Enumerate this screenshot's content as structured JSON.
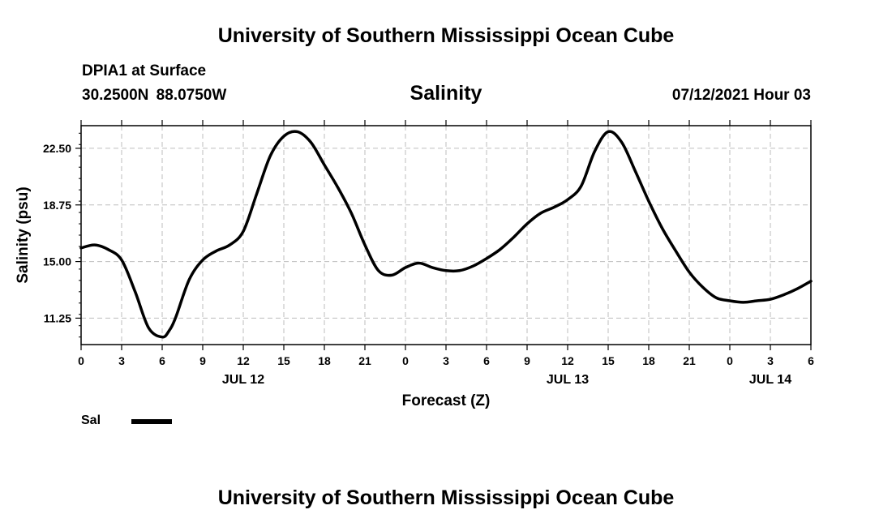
{
  "header": {
    "title": "University of Southern Mississippi Ocean Cube",
    "station": "DPIA1 at Surface",
    "coordinates": "30.2500N  88.0750W",
    "variable": "Salinity",
    "datetime": "07/12/2021 Hour 03"
  },
  "footer": {
    "title": "University of Southern Mississippi Ocean Cube"
  },
  "legend": {
    "label": "Sal",
    "color": "#000000"
  },
  "chart_data": {
    "type": "line",
    "ylabel": "Salinity (psu)",
    "xlabel": "Forecast (Z)",
    "ylim": [
      9.5,
      24.0
    ],
    "yticks": [
      11.25,
      15.0,
      18.75,
      22.5
    ],
    "ytick_labels": [
      "11.25",
      "15.00",
      "18.75",
      "22.50"
    ],
    "xlim": [
      0,
      54
    ],
    "x_unit": "hours since JUL 12 00Z",
    "xtick_labels": [
      "0",
      "3",
      "6",
      "9",
      "12",
      "15",
      "18",
      "21",
      "0",
      "3",
      "6",
      "9",
      "12",
      "15",
      "18",
      "21",
      "0",
      "3",
      "6"
    ],
    "day_labels": [
      {
        "label": "JUL 12",
        "x": 12
      },
      {
        "label": "JUL 13",
        "x": 36
      },
      {
        "label": "JUL 14",
        "x": 51
      }
    ],
    "grid": true,
    "legend_position": "bottom-left",
    "series": [
      {
        "name": "Sal",
        "color": "#000000",
        "x": [
          0,
          1,
          2,
          3,
          4,
          5,
          6,
          6.5,
          7,
          8,
          9,
          10,
          11,
          12,
          13,
          14,
          15,
          16,
          17,
          18,
          19,
          20,
          21,
          22,
          23,
          24,
          25,
          26,
          27,
          28,
          29,
          30,
          31,
          32,
          33,
          34,
          35,
          36,
          37,
          38,
          39,
          40,
          41,
          42,
          43,
          44,
          45,
          46,
          47,
          48,
          49,
          50,
          51,
          52,
          53,
          54
        ],
        "values": [
          15.9,
          16.1,
          15.8,
          15.1,
          13.0,
          10.6,
          10.0,
          10.4,
          11.3,
          13.8,
          15.1,
          15.7,
          16.1,
          17.0,
          19.5,
          22.0,
          23.3,
          23.6,
          22.9,
          21.4,
          19.9,
          18.2,
          16.1,
          14.4,
          14.1,
          14.6,
          14.9,
          14.6,
          14.4,
          14.4,
          14.7,
          15.2,
          15.8,
          16.6,
          17.5,
          18.2,
          18.6,
          19.1,
          20.0,
          22.3,
          23.6,
          22.9,
          21.0,
          19.0,
          17.2,
          15.7,
          14.3,
          13.3,
          12.6,
          12.4,
          12.3,
          12.4,
          12.5,
          12.8,
          13.2,
          13.7
        ]
      }
    ]
  }
}
